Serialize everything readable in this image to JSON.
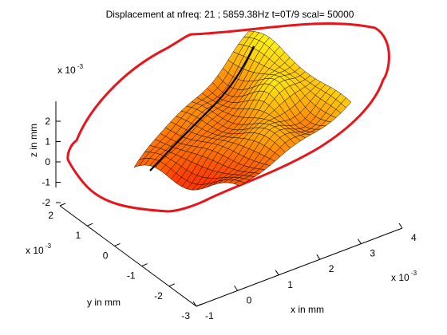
{
  "chart_data": {
    "type": "surface",
    "title": "Displacement at nfreq: 21   ; 5859.38Hz    t=0T/9  scal= 50000",
    "xlabel": "x in mm",
    "ylabel": "y in mm",
    "zlabel": "z in mm",
    "x_exponent": "x 10",
    "y_exponent": "x 10",
    "z_exponent": "x 10",
    "exponent_power": "-3",
    "x_ticks": [
      "-1",
      "0",
      "1",
      "2",
      "3",
      "4"
    ],
    "y_ticks": [
      "-3",
      "-2",
      "-1",
      "0",
      "1",
      "2"
    ],
    "z_ticks": [
      "-2",
      "-1",
      "0",
      "1",
      "2"
    ],
    "x_tick_values": [
      -1,
      0,
      1,
      2,
      3,
      4
    ],
    "y_tick_values": [
      -3,
      -2,
      -1,
      0,
      1,
      2
    ],
    "z_tick_values": [
      -2,
      -1,
      0,
      1,
      2
    ],
    "xlim": [
      -1,
      4
    ],
    "ylim": [
      -3,
      2
    ],
    "zlim": [
      -2.5,
      2.5
    ],
    "units_scale": 0.001,
    "colormap": "autumn",
    "colors": {
      "boundary": "#e8141a",
      "surface_low": "#ff5500",
      "surface_high": "#ffff00",
      "edges": "#000000"
    },
    "grid": false,
    "legend": "none"
  }
}
